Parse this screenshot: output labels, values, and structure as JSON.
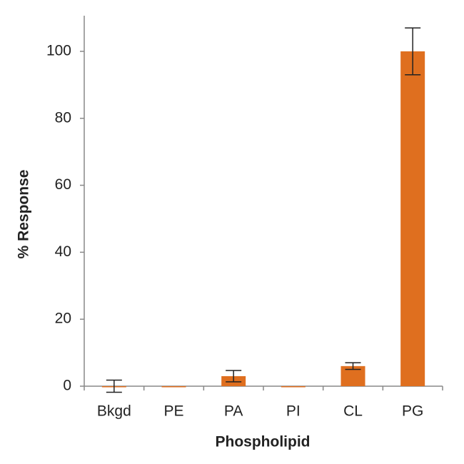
{
  "chart_data": {
    "type": "bar",
    "categories": [
      "Bkgd",
      "PE",
      "PA",
      "PI",
      "CL",
      "PG"
    ],
    "values": [
      0,
      -0.2,
      3,
      -0.2,
      6,
      100
    ],
    "errors": [
      1.8,
      0,
      1.7,
      0,
      1,
      7
    ],
    "color": "#df6f1f",
    "ylabel": "% Response",
    "xlabel": "Phospholipid",
    "ylim": [
      0,
      110
    ],
    "yticks": [
      0,
      20,
      40,
      60,
      80,
      100
    ],
    "grid": false
  }
}
